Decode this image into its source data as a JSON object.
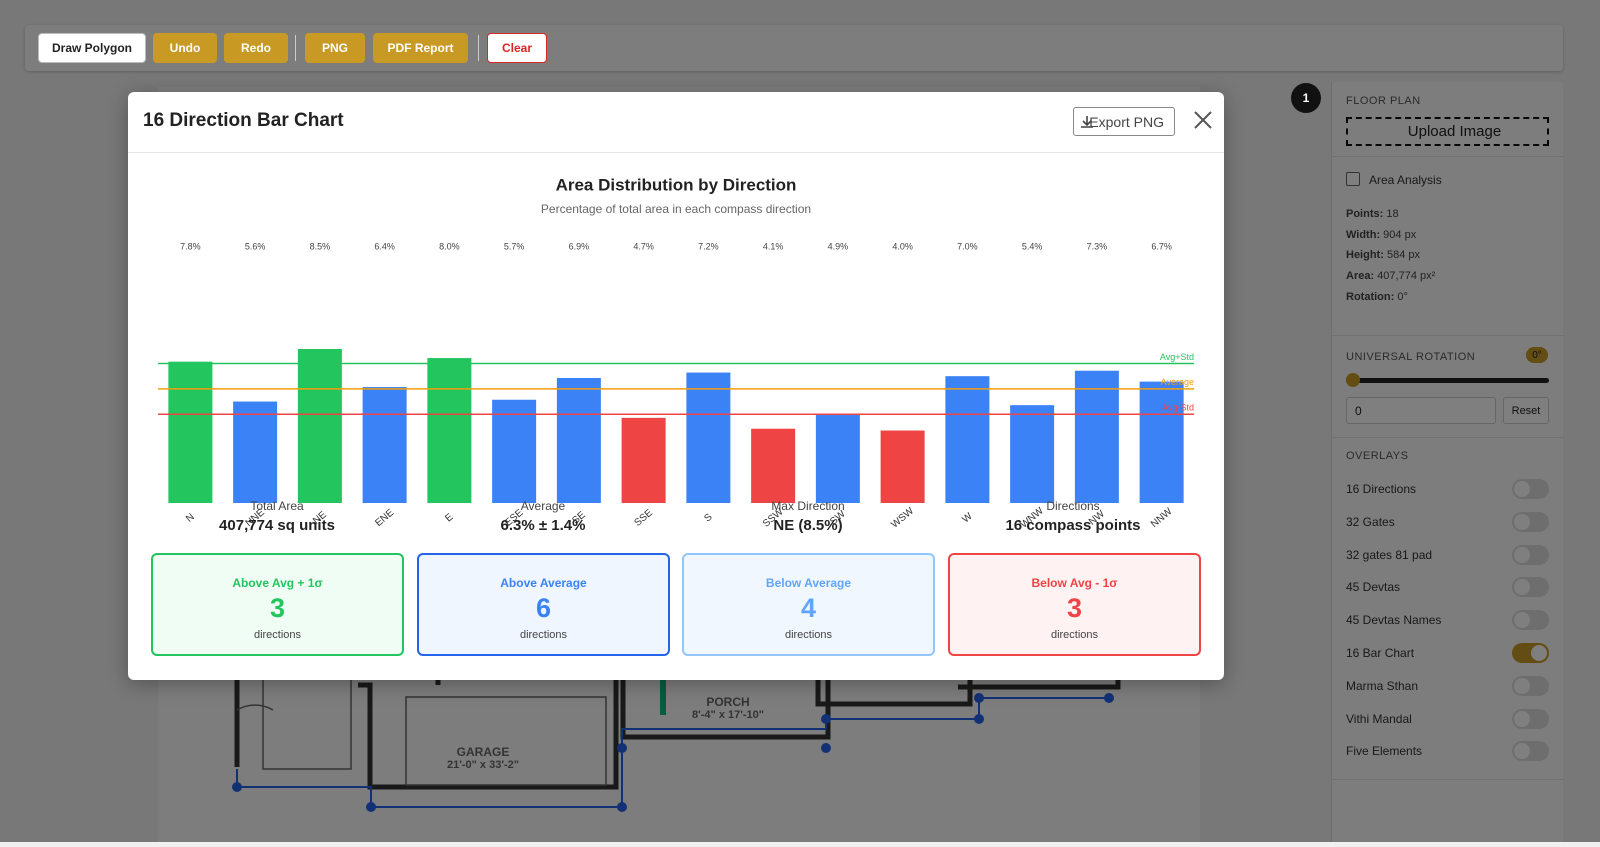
{
  "toolbar": {
    "buttons": [
      "Draw Polygon",
      "Undo",
      "Redo",
      "PNG",
      "PDF Report",
      "Clear"
    ]
  },
  "floor_plan": {
    "rooms": [
      {
        "name": "GARAGE",
        "size": "21'-0\" x 33'-2\""
      },
      {
        "name": "PORCH",
        "size": "8'-4\" x 17'-10\""
      }
    ]
  },
  "modal": {
    "title": "16 Direction Bar Chart",
    "export_button": "Export PNG"
  },
  "chart_data": {
    "type": "bar",
    "title": "Area Distribution by Direction",
    "subtitle": "Percentage of total area in each compass direction",
    "categories": [
      "N",
      "NNE",
      "NE",
      "ENE",
      "E",
      "ESE",
      "SE",
      "SSE",
      "S",
      "SSW",
      "SW",
      "WSW",
      "W",
      "WNW",
      "NW",
      "NNW"
    ],
    "values": [
      7.8,
      5.6,
      8.5,
      6.4,
      8.0,
      5.7,
      6.9,
      4.7,
      7.2,
      4.1,
      4.9,
      4.0,
      7.0,
      5.4,
      7.3,
      6.7
    ],
    "value_labels": [
      "7.8%",
      "5.6%",
      "8.5%",
      "6.4%",
      "8.0%",
      "5.7%",
      "6.9%",
      "4.7%",
      "7.2%",
      "4.1%",
      "4.9%",
      "4.0%",
      "7.0%",
      "5.4%",
      "7.3%",
      "6.7%"
    ],
    "colors": [
      "#22c55e",
      "#3b82f6",
      "#22c55e",
      "#3b82f6",
      "#22c55e",
      "#3b82f6",
      "#3b82f6",
      "#ef4444",
      "#3b82f6",
      "#ef4444",
      "#3b82f6",
      "#ef4444",
      "#3b82f6",
      "#3b82f6",
      "#3b82f6",
      "#3b82f6"
    ],
    "reference_lines": [
      {
        "label": "Avg+Std",
        "value": 7.7,
        "color": "#22c55e"
      },
      {
        "label": "Average",
        "value": 6.3,
        "color": "#f59e0b"
      },
      {
        "label": "Avg-Std",
        "value": 4.9,
        "color": "#ef4444"
      }
    ]
  },
  "stats": [
    {
      "label": "Total Area",
      "value": "407,774 sq units"
    },
    {
      "label": "Average",
      "value": "6.3% ± 1.4%"
    },
    {
      "label": "Max Direction",
      "value": "NE (8.5%)"
    },
    {
      "label": "Directions",
      "value": "16 compass points"
    }
  ],
  "summary_cards": [
    {
      "title": "Above Avg + 1σ",
      "count": 3,
      "unit": "directions",
      "color": "#22c55e"
    },
    {
      "title": "Above Average",
      "count": 6,
      "unit": "directions",
      "color": "#3b82f6"
    },
    {
      "title": "Below Average",
      "count": 4,
      "unit": "directions",
      "color": "#60a5fa"
    },
    {
      "title": "Below Avg - 1σ",
      "count": 3,
      "unit": "directions",
      "color": "#ef4444"
    }
  ],
  "sidebar": {
    "badge": "1",
    "floor_plan_heading": "FLOOR PLAN",
    "upload_button": "Upload Image",
    "area_analysis": "Area Analysis",
    "details": [
      {
        "label": "Points:",
        "value": "18"
      },
      {
        "label": "Width:",
        "value": "904 px"
      },
      {
        "label": "Height:",
        "value": "584 px"
      },
      {
        "label": "Area:",
        "value": "407,774 px²"
      },
      {
        "label": "Rotation:",
        "value": "0°"
      }
    ],
    "rotation_heading": "UNIVERSAL ROTATION",
    "rotation_badge": "0°",
    "rotation_input": "0",
    "reset_button": "Reset",
    "overlays_heading": "OVERLAYS",
    "overlays": [
      {
        "name": "16 Directions",
        "on": false
      },
      {
        "name": "32 Gates",
        "on": false
      },
      {
        "name": "32 gates 81 pad",
        "on": false
      },
      {
        "name": "45 Devtas",
        "on": false
      },
      {
        "name": "45 Devtas Names",
        "on": false
      },
      {
        "name": "16 Bar Chart",
        "on": true
      },
      {
        "name": "Marma Sthan",
        "on": false
      },
      {
        "name": "Vithi Mandal",
        "on": false
      },
      {
        "name": "Five Elements",
        "on": false
      }
    ]
  }
}
